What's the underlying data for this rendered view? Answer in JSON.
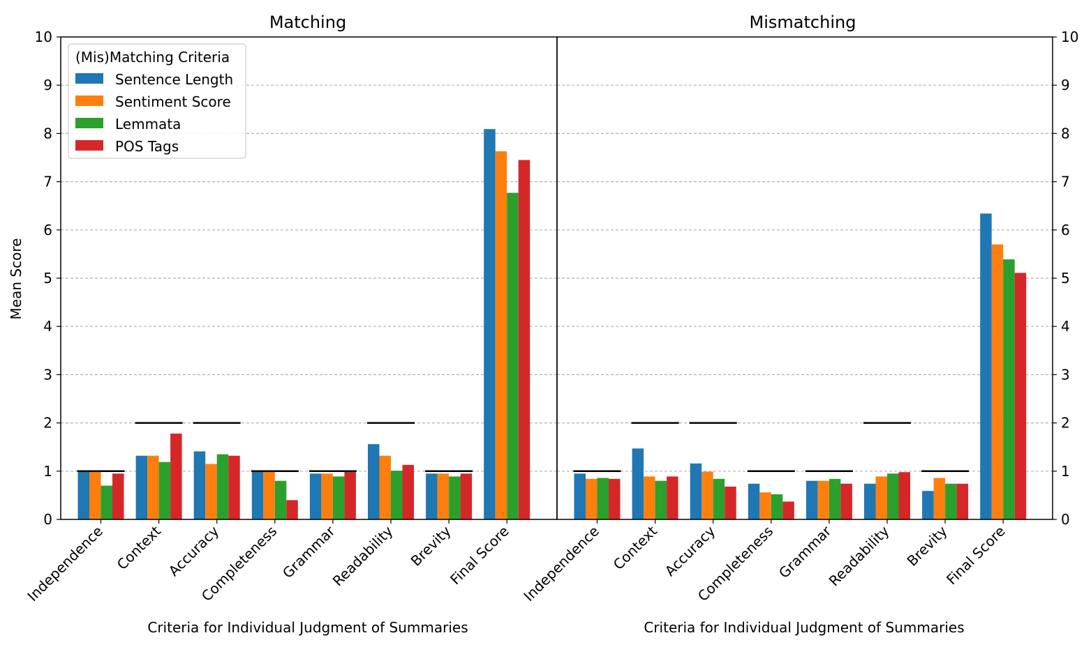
{
  "figure": {
    "ylabel": "Mean Score",
    "legend_title": "(Mis)Matching Criteria"
  },
  "colors": {
    "Sentence Length": "#1f77b4",
    "Sentiment Score": "#ff7f0e",
    "Lemmata": "#2ca02c",
    "POS Tags": "#d62728",
    "max_marker": "#000000",
    "grid": "#b0b0b0"
  },
  "chart_data": [
    {
      "type": "bar",
      "title": "Matching",
      "xlabel": "Criteria for Individual Judgment of Summaries",
      "ylabel": "Mean Score",
      "ylim": [
        0,
        10
      ],
      "yticks": [
        "0",
        "1",
        "2",
        "3",
        "4",
        "5",
        "6",
        "7",
        "8",
        "9",
        "10"
      ],
      "grid": "horizontal dashed",
      "legend_placement": "top-left",
      "categories": [
        "Independence",
        "Context",
        "Accuracy",
        "Completeness",
        "Grammar",
        "Readability",
        "Brevity",
        "Final Score"
      ],
      "max_markers": [
        1,
        2,
        2,
        1,
        1,
        2,
        1,
        null
      ],
      "series": [
        {
          "name": "Sentence Length",
          "values": [
            1.0,
            1.32,
            1.41,
            1.0,
            0.95,
            1.56,
            0.95,
            8.09
          ]
        },
        {
          "name": "Sentiment Score",
          "values": [
            1.0,
            1.32,
            1.15,
            1.0,
            0.95,
            1.32,
            0.95,
            7.63
          ]
        },
        {
          "name": "Lemmata",
          "values": [
            0.7,
            1.19,
            1.35,
            0.8,
            0.89,
            1.01,
            0.89,
            6.77
          ]
        },
        {
          "name": "POS Tags",
          "values": [
            0.95,
            1.78,
            1.32,
            0.4,
            1.0,
            1.13,
            0.95,
            7.45
          ]
        }
      ]
    },
    {
      "type": "bar",
      "title": "Mismatching",
      "xlabel": "Criteria for Individual Judgment of Summaries",
      "ylim": [
        0,
        10
      ],
      "yticks": [
        "0",
        "1",
        "2",
        "3",
        "4",
        "5",
        "6",
        "7",
        "8",
        "9",
        "10"
      ],
      "grid": "horizontal dashed",
      "categories": [
        "Independence",
        "Context",
        "Accuracy",
        "Completeness",
        "Grammar",
        "Readability",
        "Brevity",
        "Final Score"
      ],
      "max_markers": [
        1,
        2,
        2,
        1,
        1,
        2,
        1,
        null
      ],
      "series": [
        {
          "name": "Sentence Length",
          "values": [
            0.95,
            1.47,
            1.16,
            0.74,
            0.8,
            0.74,
            0.59,
            6.34
          ]
        },
        {
          "name": "Sentiment Score",
          "values": [
            0.84,
            0.89,
            0.99,
            0.56,
            0.8,
            0.89,
            0.86,
            5.7
          ]
        },
        {
          "name": "Lemmata",
          "values": [
            0.86,
            0.8,
            0.84,
            0.52,
            0.84,
            0.95,
            0.74,
            5.39
          ]
        },
        {
          "name": "POS Tags",
          "values": [
            0.84,
            0.89,
            0.68,
            0.37,
            0.74,
            0.98,
            0.74,
            5.11
          ]
        }
      ]
    }
  ]
}
